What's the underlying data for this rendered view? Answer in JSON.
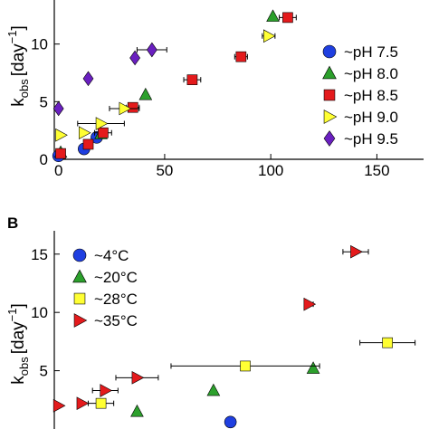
{
  "chart_data": [
    {
      "type": "scatter",
      "panel_label": "",
      "ylabel_main": "k",
      "ylabel_sub": "obs",
      "ylabel_unit": "[day",
      "ylabel_exp": "−1",
      "ylabel_close": "]",
      "xlim": [
        -2,
        172
      ],
      "ylim": [
        0,
        15
      ],
      "xticks": [
        0,
        50,
        100,
        150
      ],
      "xtick_labels": [
        "0",
        "50",
        "100",
        "150"
      ],
      "yticks": [
        0,
        5,
        10
      ],
      "ytick_labels": [
        "0",
        "5",
        "10"
      ],
      "legend": "right",
      "series": [
        {
          "name": "~pH 7.5",
          "marker": "circle",
          "color": "#1f3fe0",
          "points": [
            {
              "x": 0,
              "y": 0.3,
              "xerr": 0
            },
            {
              "x": 12,
              "y": 0.9,
              "xerr": 0
            },
            {
              "x": 18,
              "y": 1.9,
              "xerr": 0
            }
          ]
        },
        {
          "name": "~pH 8.0",
          "marker": "triangle-up",
          "color": "#2ca02c",
          "points": [
            {
              "x": 1,
              "y": 0.6,
              "xerr": 0
            },
            {
              "x": 20,
              "y": 2.2,
              "xerr": 0
            },
            {
              "x": 41,
              "y": 5.6,
              "xerr": 0
            },
            {
              "x": 101,
              "y": 12.4,
              "xerr": 0
            }
          ]
        },
        {
          "name": "~pH 8.5",
          "marker": "square",
          "color": "#e41a1c",
          "points": [
            {
              "x": 1,
              "y": 0.5,
              "xerr": 0
            },
            {
              "x": 14,
              "y": 1.3,
              "xerr": 0
            },
            {
              "x": 21,
              "y": 2.3,
              "xerr": 4
            },
            {
              "x": 35,
              "y": 4.5,
              "xerr": 3
            },
            {
              "x": 63,
              "y": 6.9,
              "xerr": 4
            },
            {
              "x": 86,
              "y": 8.9,
              "xerr": 3
            },
            {
              "x": 108,
              "y": 12.3,
              "xerr": 4
            }
          ]
        },
        {
          "name": "~pH 9.0",
          "marker": "triangle-right",
          "color": "#ffff33",
          "points": [
            {
              "x": 1,
              "y": 2.1,
              "xerr": 0
            },
            {
              "x": 12,
              "y": 2.3,
              "xerr": 0
            },
            {
              "x": 20,
              "y": 3.1,
              "xerr": 11
            },
            {
              "x": 31,
              "y": 4.4,
              "xerr": 7
            },
            {
              "x": 99,
              "y": 10.7,
              "xerr": 3
            }
          ]
        },
        {
          "name": "~pH 9.5",
          "marker": "diamond",
          "color": "#6a1fc0",
          "points": [
            {
              "x": 0,
              "y": 4.4,
              "xerr": 0
            },
            {
              "x": 14,
              "y": 7.0,
              "xerr": 0
            },
            {
              "x": 36,
              "y": 8.8,
              "xerr": 0
            },
            {
              "x": 44,
              "y": 9.5,
              "xerr": 7
            }
          ]
        }
      ]
    },
    {
      "type": "scatter",
      "panel_label": "B",
      "ylabel_main": "k",
      "ylabel_sub": "obs",
      "ylabel_unit": "[day",
      "ylabel_exp": "−1",
      "ylabel_close": "]",
      "xlim": [
        -2,
        172
      ],
      "ylim": [
        0,
        17
      ],
      "xticks": [],
      "xtick_labels": [],
      "yticks": [
        5,
        10,
        15
      ],
      "ytick_labels": [
        "5",
        "10",
        "15"
      ],
      "legend": "top-left",
      "series": [
        {
          "name": "~4°C",
          "marker": "circle",
          "color": "#1f3fe0",
          "points": [
            {
              "x": 81,
              "y": 0.6,
              "xerr": 0
            }
          ]
        },
        {
          "name": "~20°C",
          "marker": "triangle-up",
          "color": "#2ca02c",
          "points": [
            {
              "x": 37,
              "y": 1.5,
              "xerr": 0
            },
            {
              "x": 73,
              "y": 3.3,
              "xerr": 0
            },
            {
              "x": 120,
              "y": 5.2,
              "xerr": 0
            }
          ]
        },
        {
          "name": "~28°C",
          "marker": "square",
          "color": "#ffff33",
          "points": [
            {
              "x": 20,
              "y": 2.2,
              "xerr": 6
            },
            {
              "x": 88,
              "y": 5.4,
              "xerr": 35
            },
            {
              "x": 155,
              "y": 7.4,
              "xerr": 13
            }
          ]
        },
        {
          "name": "~35°C",
          "marker": "triangle-right",
          "color": "#e41a1c",
          "points": [
            {
              "x": 0,
              "y": 2.0,
              "xerr": 0
            },
            {
              "x": 11,
              "y": 2.2,
              "xerr": 0
            },
            {
              "x": 22,
              "y": 3.3,
              "xerr": 6
            },
            {
              "x": 37,
              "y": 4.4,
              "xerr": 10
            },
            {
              "x": 118,
              "y": 10.7,
              "xerr": 2
            },
            {
              "x": 140,
              "y": 15.2,
              "xerr": 6
            }
          ]
        }
      ]
    }
  ],
  "colors": {
    "axis": "#000000",
    "errorbar": "#000000"
  }
}
